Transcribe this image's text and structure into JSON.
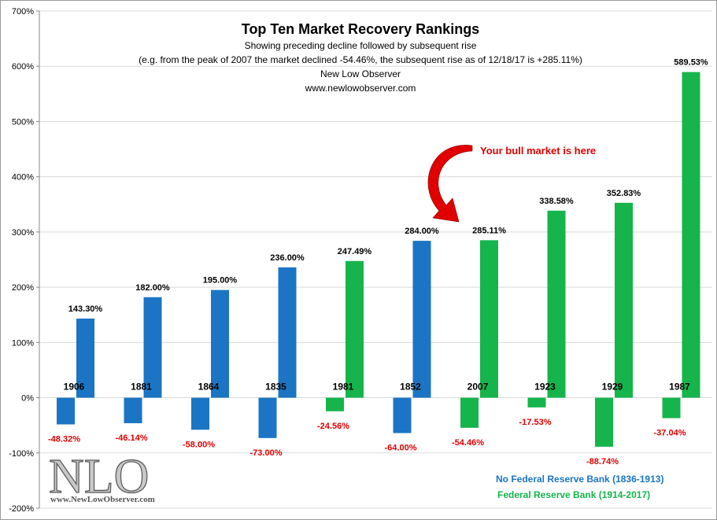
{
  "colors": {
    "no_fed": "#1b75c4",
    "fed": "#15b54b",
    "decline_label": "#e00000",
    "annotation": "#e00000",
    "grid": "#d9d9d9"
  },
  "header": {
    "title": "Top Ten Market Recovery Rankings",
    "subtitle1": "Showing preceding decline followed by subsequent rise",
    "subtitle2": "(e.g. from the peak  of 2007  the market declined -54.46%, the subsequent rise  as of 12/18/17  is +285.11%)",
    "source_name": "New Low Observer",
    "source_url": "www.newlowobserver.com"
  },
  "annotation": {
    "text": "Your bull market is here",
    "icon": "curved-arrow-icon"
  },
  "legend": {
    "no_fed": "No Federal Reserve Bank (1836-1913)",
    "fed": "Federal Reserve Bank (1914-2017)"
  },
  "logo": {
    "text": "NLO",
    "url": "www.NewLowObserver.com"
  },
  "chart_data": {
    "type": "bar",
    "title": "Top Ten Market Recovery Rankings",
    "xlabel": "",
    "ylabel": "",
    "ylim": [
      -200,
      700
    ],
    "yticks": [
      -200,
      -100,
      0,
      100,
      200,
      300,
      400,
      500,
      600,
      700
    ],
    "ytick_labels": [
      "-200%",
      "-100%",
      "0%",
      "100%",
      "200%",
      "300%",
      "400%",
      "500%",
      "600%",
      "700%"
    ],
    "grid": "horizontal",
    "categories": [
      "1906",
      "1881",
      "1864",
      "1835",
      "1981",
      "1852",
      "2007",
      "1923",
      "1929",
      "1987"
    ],
    "group": [
      "no_fed",
      "no_fed",
      "no_fed",
      "no_fed",
      "fed",
      "no_fed",
      "fed",
      "fed",
      "fed",
      "fed"
    ],
    "series": [
      {
        "name": "Preceding decline",
        "values": [
          -48.32,
          -46.14,
          -58.0,
          -73.0,
          -24.56,
          -64.0,
          -54.46,
          -17.53,
          -88.74,
          -37.04
        ],
        "labels": [
          "-48.32%",
          "-46.14%",
          "-58.00%",
          "-73.00%",
          "-24.56%",
          "-64.00%",
          "-54.46%",
          "-17.53%",
          "-88.74%",
          "-37.04%"
        ]
      },
      {
        "name": "Subsequent rise",
        "values": [
          143.3,
          182.0,
          195.0,
          236.0,
          247.49,
          284.0,
          285.11,
          338.58,
          352.83,
          589.53
        ],
        "labels": [
          "143.30%",
          "182.00%",
          "195.00%",
          "236.00%",
          "247.49%",
          "284.00%",
          "285.11%",
          "338.58%",
          "352.83%",
          "589.53%"
        ]
      }
    ],
    "legend_position": "bottom-right"
  }
}
